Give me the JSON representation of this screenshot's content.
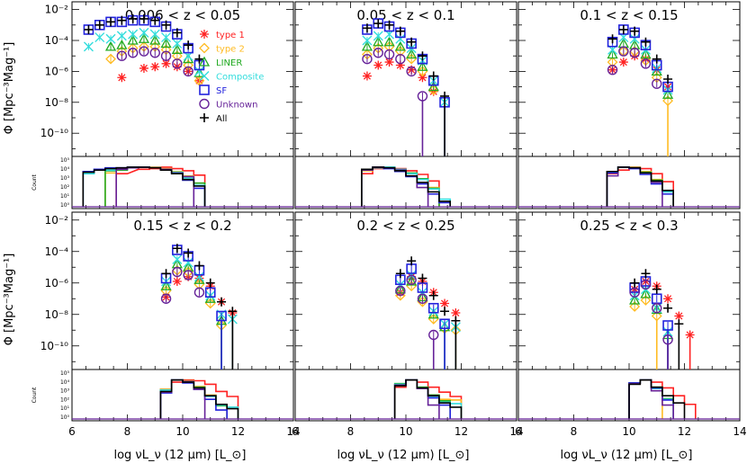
{
  "chart_data": {
    "type": "scatter",
    "ylabel": "Φ [Mpc⁻³Mag⁻¹]",
    "xlabel": "log νL_ν (12 μm) [L_⊙]",
    "count_label": "Count",
    "xlim": [
      6,
      14
    ],
    "xticks": [
      "6",
      "8",
      "10",
      "12",
      "14"
    ],
    "ylim_log": [
      -11.5,
      -1.5
    ],
    "yticks": [
      "10⁻²",
      "10⁻⁴",
      "10⁻⁶",
      "10⁻⁸",
      "10⁻¹⁰"
    ],
    "count_yticks": [
      "10⁵",
      "10⁴",
      "10³",
      "10²",
      "10¹",
      "10⁰"
    ],
    "colors": {
      "type1": "#ff2222",
      "type2": "#ffbb22",
      "LINER": "#22aa22",
      "Composite": "#33dddd",
      "SF": "#2222dd",
      "Unknown": "#662299",
      "All": "#000000"
    },
    "legend": [
      {
        "key": "type1",
        "label": "type 1",
        "marker": "asterisk"
      },
      {
        "key": "type2",
        "label": "type 2",
        "marker": "diamond"
      },
      {
        "key": "LINER",
        "label": "LINER",
        "marker": "triangle"
      },
      {
        "key": "Composite",
        "label": "Composite",
        "marker": "x"
      },
      {
        "key": "SF",
        "label": "SF",
        "marker": "square"
      },
      {
        "key": "Unknown",
        "label": "Unknown",
        "marker": "circle"
      },
      {
        "key": "All",
        "label": "All",
        "marker": "plus"
      }
    ],
    "panels": [
      {
        "title": "0.006 < z < 0.05",
        "series": {
          "SF": {
            "x": [
              6.6,
              7.0,
              7.4,
              7.8,
              8.2,
              8.6,
              9.0,
              9.4,
              9.8,
              10.2,
              10.6
            ],
            "y": [
              -3.3,
              -3.0,
              -2.8,
              -2.8,
              -2.7,
              -2.7,
              -2.8,
              -3.1,
              -3.6,
              -4.5,
              -5.6
            ]
          },
          "All": {
            "x": [
              6.6,
              7.0,
              7.4,
              7.8,
              8.2,
              8.6,
              9.0,
              9.4,
              9.8,
              10.2,
              10.6
            ],
            "y": [
              -3.3,
              -3.0,
              -2.8,
              -2.7,
              -2.6,
              -2.6,
              -2.7,
              -3.0,
              -3.5,
              -4.3,
              -5.2
            ]
          },
          "Composite": {
            "x": [
              6.6,
              7.0,
              7.4,
              7.8,
              8.2,
              8.6,
              9.0,
              9.4,
              9.8,
              10.2,
              10.6
            ],
            "y": [
              -4.4,
              -3.8,
              -3.9,
              -3.7,
              -3.6,
              -3.5,
              -3.6,
              -3.8,
              -4.2,
              -5.0,
              -6.0
            ]
          },
          "LINER": {
            "x": [
              7.4,
              7.8,
              8.2,
              8.6,
              9.0,
              9.4,
              9.8,
              10.2,
              10.6
            ],
            "y": [
              -4.4,
              -4.3,
              -4.0,
              -3.9,
              -4.0,
              -4.2,
              -4.6,
              -5.2,
              -6.1
            ]
          },
          "type2": {
            "x": [
              7.4,
              7.8,
              8.2,
              8.6,
              9.0,
              9.4,
              9.8,
              10.2,
              10.6
            ],
            "y": [
              -5.2,
              -4.7,
              -4.5,
              -4.4,
              -4.4,
              -4.6,
              -5.0,
              -5.6,
              -6.6
            ]
          },
          "Unknown": {
            "x": [
              7.8,
              8.2,
              8.6,
              9.0,
              9.4,
              9.8,
              10.2
            ],
            "y": [
              -5.0,
              -4.8,
              -4.7,
              -4.8,
              -5.0,
              -5.5,
              -6.0
            ]
          },
          "type1": {
            "x": [
              7.8,
              8.6,
              9.0,
              9.4,
              9.8,
              10.2,
              10.6
            ],
            "y": [
              -6.4,
              -5.8,
              -5.7,
              -5.5,
              -5.7,
              -6.0,
              -6.6
            ]
          }
        }
      },
      {
        "title": "0.05 < z < 0.1",
        "series": {
          "SF": {
            "x": [
              8.6,
              9.0,
              9.4,
              9.8,
              10.2,
              10.6,
              11.0,
              11.4
            ],
            "y": [
              -3.3,
              -2.9,
              -3.1,
              -3.5,
              -4.2,
              -5.2,
              -6.6,
              -8.0
            ]
          },
          "All": {
            "x": [
              8.6,
              9.0,
              9.4,
              9.8,
              10.2,
              10.6,
              11.0,
              11.4
            ],
            "y": [
              -3.2,
              -2.9,
              -3.0,
              -3.4,
              -4.1,
              -5.0,
              -6.3,
              -7.6
            ]
          },
          "Composite": {
            "x": [
              8.6,
              9.0,
              9.4,
              9.8,
              10.2,
              10.6,
              11.0,
              11.4
            ],
            "y": [
              -4.0,
              -3.7,
              -3.6,
              -3.9,
              -4.5,
              -5.3,
              -6.6,
              -8.0
            ]
          },
          "LINER": {
            "x": [
              8.6,
              9.0,
              9.4,
              9.8,
              10.2,
              10.6,
              11.0
            ],
            "y": [
              -4.4,
              -4.1,
              -4.1,
              -4.4,
              -4.9,
              -5.7,
              -7.0
            ]
          },
          "type2": {
            "x": [
              8.6,
              9.0,
              9.4,
              9.8,
              10.2,
              10.6,
              11.0
            ],
            "y": [
              -4.9,
              -4.5,
              -4.4,
              -4.7,
              -5.2,
              -6.0,
              -7.2
            ]
          },
          "Unknown": {
            "x": [
              8.6,
              9.0,
              9.4,
              9.8,
              10.2,
              10.6
            ],
            "y": [
              -5.2,
              -4.8,
              -4.9,
              -5.2,
              -6.0,
              -7.6
            ]
          },
          "type1": {
            "x": [
              8.6,
              9.0,
              9.4,
              9.8,
              10.2,
              10.6,
              11.0
            ],
            "y": [
              -6.3,
              -5.6,
              -5.4,
              -5.6,
              -5.9,
              -6.4,
              -7.3
            ]
          }
        }
      },
      {
        "title": "0.1 < z < 0.15",
        "series": {
          "SF": {
            "x": [
              9.4,
              9.8,
              10.2,
              10.6,
              11.0,
              11.4
            ],
            "y": [
              -4.1,
              -3.3,
              -3.5,
              -4.3,
              -5.6,
              -7.0
            ]
          },
          "All": {
            "x": [
              9.4,
              9.8,
              10.2,
              10.6,
              11.0,
              11.4
            ],
            "y": [
              -3.9,
              -3.3,
              -3.4,
              -4.1,
              -5.2,
              -6.5
            ]
          },
          "Composite": {
            "x": [
              9.4,
              9.8,
              10.2,
              10.6,
              11.0,
              11.4
            ],
            "y": [
              -4.6,
              -3.8,
              -3.9,
              -4.6,
              -5.8,
              -7.2
            ]
          },
          "LINER": {
            "x": [
              9.4,
              9.8,
              10.2,
              10.6,
              11.0,
              11.4
            ],
            "y": [
              -4.9,
              -4.2,
              -4.3,
              -4.9,
              -6.0,
              -7.5
            ]
          },
          "type2": {
            "x": [
              9.4,
              9.8,
              10.2,
              10.6,
              11.0,
              11.4
            ],
            "y": [
              -5.4,
              -4.7,
              -4.7,
              -5.3,
              -6.4,
              -7.9
            ]
          },
          "Unknown": {
            "x": [
              9.4,
              9.8,
              10.2,
              10.6,
              11.0
            ],
            "y": [
              -5.9,
              -4.7,
              -4.8,
              -5.5,
              -6.8
            ]
          },
          "type1": {
            "x": [
              9.4,
              9.8,
              10.2,
              10.6,
              11.0,
              11.4
            ],
            "y": [
              -5.9,
              -5.4,
              -5.0,
              -5.2,
              -5.9,
              -7.0
            ]
          }
        }
      },
      {
        "title": "0.15 < z < 0.2",
        "series": {
          "SF": {
            "x": [
              9.4,
              9.8,
              10.2,
              10.6,
              11.0,
              11.4
            ],
            "y": [
              -5.7,
              -3.9,
              -4.3,
              -5.2,
              -6.6,
              -8.1
            ]
          },
          "All": {
            "x": [
              9.4,
              9.8,
              10.2,
              10.6,
              11.0,
              11.4,
              11.8
            ],
            "y": [
              -5.4,
              -3.8,
              -4.1,
              -4.9,
              -6.0,
              -7.2,
              -7.8
            ]
          },
          "Composite": {
            "x": [
              9.4,
              9.8,
              10.2,
              10.6,
              11.0,
              11.4,
              11.8
            ],
            "y": [
              -5.9,
              -4.5,
              -4.7,
              -5.6,
              -6.8,
              -8.0,
              -8.3
            ]
          },
          "LINER": {
            "x": [
              9.4,
              9.8,
              10.2,
              10.6,
              11.0,
              11.4
            ],
            "y": [
              -6.2,
              -4.8,
              -5.0,
              -5.8,
              -7.0,
              -8.4
            ]
          },
          "type2": {
            "x": [
              9.4,
              9.8,
              10.2,
              10.6,
              11.0,
              11.4
            ],
            "y": [
              -6.5,
              -5.2,
              -5.3,
              -6.1,
              -7.3,
              -8.7
            ]
          },
          "Unknown": {
            "x": [
              9.4,
              9.8,
              10.2,
              10.6
            ],
            "y": [
              -7.0,
              -5.3,
              -5.5,
              -6.6
            ]
          },
          "type1": {
            "x": [
              9.4,
              9.8,
              10.2,
              10.6,
              11.0,
              11.4,
              11.8
            ],
            "y": [
              -6.9,
              -5.9,
              -5.6,
              -5.7,
              -6.2,
              -7.2,
              -7.9
            ]
          }
        }
      },
      {
        "title": "0.2 < z < 0.25",
        "series": {
          "SF": {
            "x": [
              9.8,
              10.2,
              10.6,
              11.0,
              11.4
            ],
            "y": [
              -5.8,
              -5.1,
              -6.3,
              -7.6,
              -8.6
            ]
          },
          "All": {
            "x": [
              9.8,
              10.2,
              10.6,
              11.0,
              11.4,
              11.8
            ],
            "y": [
              -5.4,
              -4.6,
              -5.7,
              -6.8,
              -7.8,
              -8.4
            ]
          },
          "Composite": {
            "x": [
              9.8,
              10.2,
              10.6,
              11.0,
              11.4,
              11.8
            ],
            "y": [
              -6.1,
              -5.5,
              -6.6,
              -7.8,
              -8.6,
              -8.8
            ]
          },
          "LINER": {
            "x": [
              9.8,
              10.2,
              10.6,
              11.0,
              11.4
            ],
            "y": [
              -6.4,
              -5.9,
              -6.9,
              -8.0,
              -8.8
            ]
          },
          "type2": {
            "x": [
              9.8,
              10.2,
              10.6,
              11.0,
              11.4,
              11.8
            ],
            "y": [
              -6.8,
              -6.2,
              -7.2,
              -8.3,
              -8.9,
              -9.0
            ]
          },
          "Unknown": {
            "x": [
              9.8,
              10.2,
              10.6,
              11.0
            ],
            "y": [
              -6.5,
              -5.8,
              -7.0,
              -9.3
            ]
          },
          "type1": {
            "x": [
              9.8,
              10.2,
              10.6,
              11.0,
              11.4,
              11.8
            ],
            "y": [
              -6.6,
              -5.6,
              -5.9,
              -6.6,
              -7.3,
              -7.9
            ]
          }
        }
      },
      {
        "title": "0.25 < z < 0.3",
        "series": {
          "SF": {
            "x": [
              10.2,
              10.6,
              11.0,
              11.4
            ],
            "y": [
              -6.3,
              -5.9,
              -7.0,
              -8.7
            ]
          },
          "All": {
            "x": [
              10.2,
              10.6,
              11.0,
              11.4,
              11.8
            ],
            "y": [
              -6.0,
              -5.4,
              -6.4,
              -7.6,
              -8.6
            ]
          },
          "Composite": {
            "x": [
              10.2,
              10.6,
              11.0,
              11.4
            ],
            "y": [
              -6.8,
              -6.4,
              -7.6,
              -9.1
            ]
          },
          "LINER": {
            "x": [
              10.2,
              10.6,
              11.0,
              11.4
            ],
            "y": [
              -7.1,
              -6.7,
              -7.7,
              -9.3
            ]
          },
          "type2": {
            "x": [
              10.2,
              10.6,
              11.0
            ],
            "y": [
              -7.5,
              -7.1,
              -8.1
            ]
          },
          "Unknown": {
            "x": [
              10.2,
              10.6,
              11.0,
              11.4
            ],
            "y": [
              -6.6,
              -6.1,
              -7.6,
              -9.6
            ]
          },
          "type1": {
            "x": [
              10.2,
              10.6,
              11.0,
              11.4,
              11.8,
              12.2
            ],
            "y": [
              -6.4,
              -5.9,
              -6.2,
              -7.0,
              -8.1,
              -9.3
            ]
          }
        }
      }
    ]
  }
}
